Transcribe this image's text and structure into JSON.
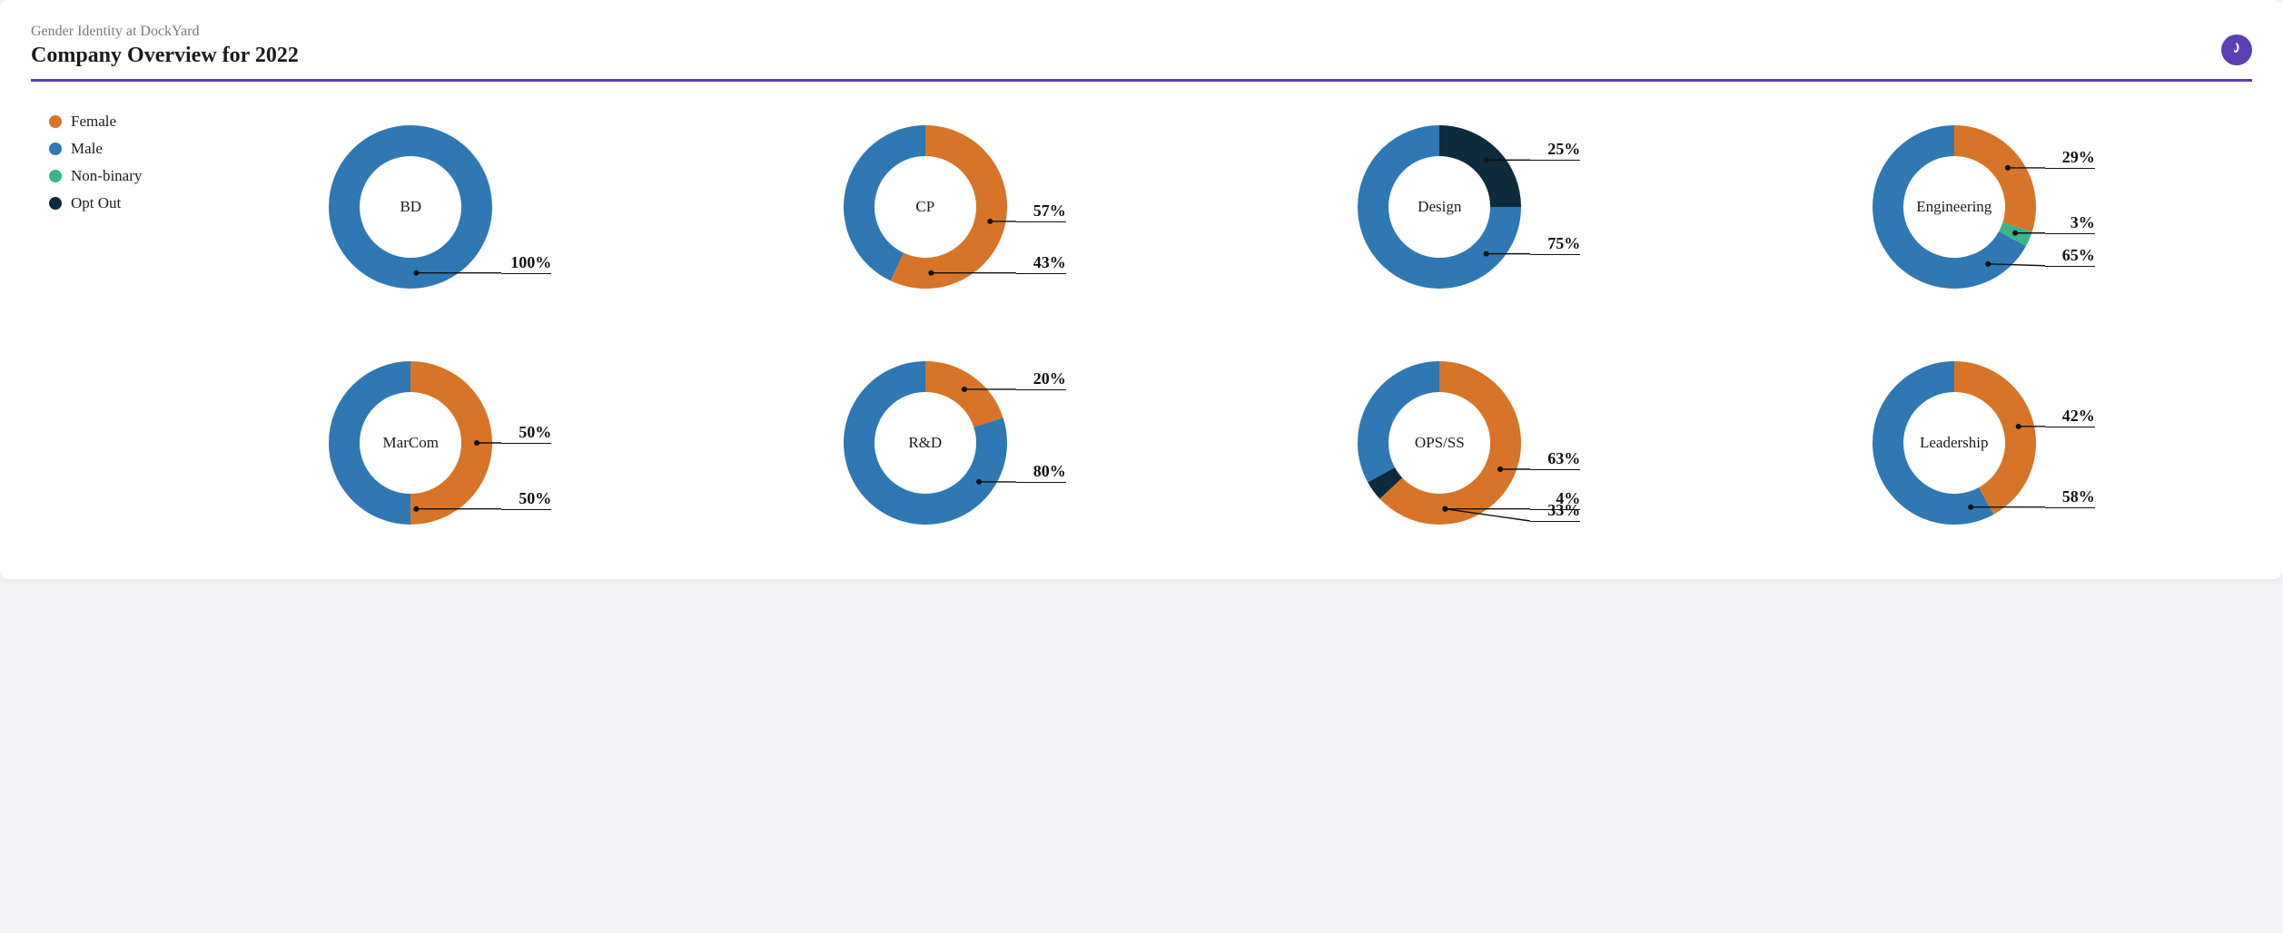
{
  "header": {
    "eyebrow": "Gender Identity at DockYard",
    "title": "Company Overview for 2022",
    "rule_color": "#5b3fb5",
    "logo_bg": "#5b3fb5"
  },
  "palette": {
    "female": "#d77427",
    "male": "#2f78b3",
    "nonbinary": "#3ab58a",
    "optout": "#0e2b3d",
    "text": "#1b1b1f",
    "muted": "#7a7a82",
    "page_bg": "#ffffff"
  },
  "legend": {
    "items": [
      {
        "key": "female",
        "label": "Female"
      },
      {
        "key": "male",
        "label": "Male"
      },
      {
        "key": "nonbinary",
        "label": "Non-binary"
      },
      {
        "key": "optout",
        "label": "Opt Out"
      }
    ]
  },
  "donut_style": {
    "outer_radius": 90,
    "inner_radius": 56,
    "stroke_width": 34,
    "center_label_fontsize": 17,
    "callout_fontsize": 18,
    "callout_fontweight": 700,
    "start_angle_deg": 0,
    "direction": "clockwise"
  },
  "charts": [
    {
      "id": "bd",
      "label": "BD",
      "segments": [
        {
          "key": "male",
          "value": 100
        }
      ]
    },
    {
      "id": "cp",
      "label": "CP",
      "segments": [
        {
          "key": "female",
          "value": 57
        },
        {
          "key": "male",
          "value": 43
        }
      ]
    },
    {
      "id": "design",
      "label": "Design",
      "segments": [
        {
          "key": "optout",
          "value": 25
        },
        {
          "key": "male",
          "value": 75
        }
      ]
    },
    {
      "id": "engineering",
      "label": "Engineering",
      "segments": [
        {
          "key": "female",
          "value": 29
        },
        {
          "key": "nonbinary",
          "value": 3
        },
        {
          "key": "male",
          "value": 65
        }
      ]
    },
    {
      "id": "marcom",
      "label": "MarCom",
      "segments": [
        {
          "key": "female",
          "value": 50
        },
        {
          "key": "male",
          "value": 50
        }
      ]
    },
    {
      "id": "rnd",
      "label": "R&D",
      "segments": [
        {
          "key": "female",
          "value": 20
        },
        {
          "key": "male",
          "value": 80
        }
      ]
    },
    {
      "id": "opsss",
      "label": "OPS/SS",
      "segments": [
        {
          "key": "female",
          "value": 63
        },
        {
          "key": "optout",
          "value": 4
        },
        {
          "key": "male",
          "value": 33
        }
      ]
    },
    {
      "id": "leadership",
      "label": "Leadership",
      "segments": [
        {
          "key": "female",
          "value": 42
        },
        {
          "key": "male",
          "value": 58
        }
      ]
    }
  ]
}
